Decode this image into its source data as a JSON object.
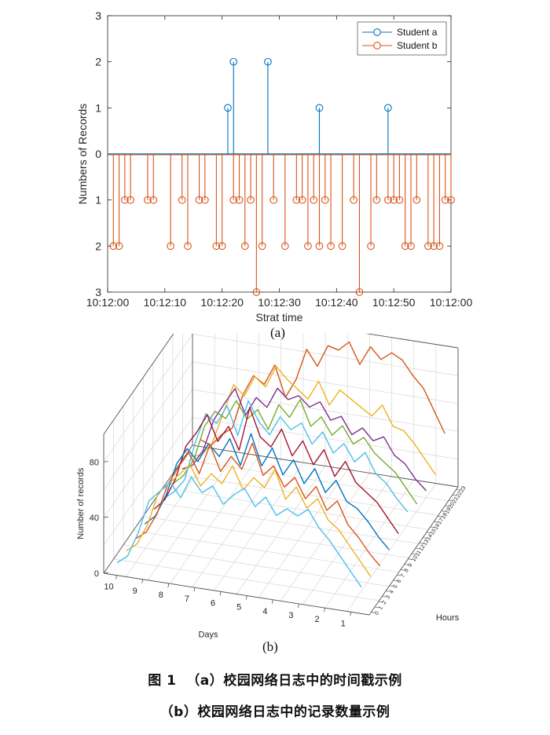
{
  "chart_data": [
    {
      "type": "stem",
      "xlabel": "Strat time",
      "ylabel": "Numbers of Records",
      "xticks": [
        "10:12:00",
        "10:12:10",
        "10:12:20",
        "10:12:30",
        "10:12:40",
        "10:12:50",
        "10:12:00"
      ],
      "yticks": [
        "3",
        "2",
        "1",
        "0",
        "1",
        "2",
        "3"
      ],
      "xlim": [
        0,
        60
      ],
      "ylim": [
        -3,
        3
      ],
      "legend_position": "top-right",
      "colors": {
        "a": "#0072BD",
        "b": "#D95319"
      },
      "series": [
        {
          "name": "Student a",
          "x": [
            21,
            22,
            28,
            37,
            49
          ],
          "values": [
            1,
            2,
            2,
            1,
            1
          ]
        },
        {
          "name": "Student b",
          "x": [
            1,
            2,
            3,
            4,
            7,
            8,
            11,
            13,
            14,
            16,
            17,
            19,
            20,
            22,
            23,
            24,
            25,
            26,
            27,
            29,
            31,
            33,
            34,
            35,
            36,
            37,
            38,
            39,
            41,
            43,
            44,
            46,
            47,
            49,
            50,
            51,
            52,
            53,
            54,
            56,
            57,
            58,
            59,
            60
          ],
          "values": [
            -2,
            -2,
            -1,
            -1,
            -1,
            -1,
            -2,
            -1,
            -2,
            -1,
            -1,
            -2,
            -2,
            -1,
            -1,
            -2,
            -1,
            -3,
            -2,
            -1,
            -2,
            -1,
            -1,
            -2,
            -1,
            -2,
            -1,
            -2,
            -2,
            -1,
            -3,
            -2,
            -1,
            -1,
            -1,
            -1,
            -2,
            -2,
            -1,
            -2,
            -2,
            -2,
            -1,
            -1
          ]
        }
      ]
    },
    {
      "type": "line3d",
      "xlabel": "Hours",
      "ylabel": "Days",
      "zlabel": "Number of records",
      "zticks": [
        "0",
        "40",
        "80"
      ],
      "zlim": [
        0,
        100
      ],
      "day_ticks": [
        "10",
        "9",
        "8",
        "7",
        "6",
        "5",
        "4",
        "3",
        "2",
        "1"
      ],
      "hour_ticks": [
        "0",
        "1",
        "2",
        "3",
        "4",
        "5",
        "6",
        "7",
        "8",
        "9",
        "10",
        "11",
        "12",
        "13",
        "14",
        "15",
        "16",
        "17",
        "18",
        "19",
        "20",
        "21",
        "22",
        "23"
      ],
      "series": [
        {
          "name": "",
          "color": "#D95319",
          "values": [
            8,
            5,
            14,
            20,
            45,
            60,
            55,
            70,
            48,
            62,
            85,
            74,
            90,
            88,
            95,
            80,
            94,
            86,
            92,
            88,
            78,
            70,
            55,
            40
          ]
        },
        {
          "name": "",
          "color": "#EDB120",
          "values": [
            5,
            8,
            18,
            40,
            62,
            55,
            70,
            64,
            80,
            72,
            66,
            60,
            74,
            58,
            70,
            65,
            60,
            55,
            64,
            50,
            48,
            40,
            30,
            20
          ]
        },
        {
          "name": "",
          "color": "#7E2F8E",
          "values": [
            6,
            10,
            22,
            45,
            58,
            70,
            52,
            66,
            60,
            75,
            68,
            72,
            65,
            70,
            58,
            62,
            50,
            56,
            48,
            52,
            40,
            35,
            25,
            18
          ]
        },
        {
          "name": "",
          "color": "#77AC30",
          "values": [
            5,
            12,
            25,
            50,
            62,
            58,
            72,
            60,
            68,
            55,
            74,
            66,
            80,
            62,
            70,
            58,
            66,
            54,
            60,
            50,
            44,
            38,
            28,
            18
          ]
        },
        {
          "name": "",
          "color": "#4DBEEE",
          "values": [
            4,
            10,
            20,
            48,
            70,
            64,
            78,
            58,
            84,
            70,
            62,
            76,
            68,
            74,
            60,
            70,
            56,
            64,
            52,
            60,
            46,
            40,
            30,
            22
          ]
        },
        {
          "name": "",
          "color": "#A2142F",
          "values": [
            6,
            14,
            30,
            55,
            66,
            80,
            62,
            74,
            58,
            90,
            70,
            64,
            78,
            60,
            72,
            56,
            68,
            50,
            62,
            48,
            42,
            36,
            26,
            16
          ]
        },
        {
          "name": "",
          "color": "#0072BD",
          "values": [
            5,
            12,
            28,
            52,
            64,
            56,
            70,
            62,
            76,
            58,
            82,
            60,
            74,
            56,
            68,
            52,
            64,
            48,
            58,
            44,
            40,
            32,
            22,
            14
          ]
        },
        {
          "name": "",
          "color": "#D95319",
          "values": [
            4,
            10,
            24,
            46,
            60,
            72,
            58,
            80,
            62,
            74,
            66,
            86,
            64,
            72,
            58,
            66,
            52,
            62,
            46,
            54,
            38,
            30,
            20,
            12
          ]
        },
        {
          "name": "",
          "color": "#EDB120",
          "values": [
            5,
            11,
            26,
            50,
            58,
            66,
            74,
            60,
            70,
            64,
            78,
            62,
            72,
            66,
            80,
            60,
            70,
            56,
            64,
            50,
            44,
            34,
            24,
            14
          ]
        },
        {
          "name": "",
          "color": "#4DBEEE",
          "values": [
            6,
            12,
            30,
            54,
            62,
            70,
            60,
            76,
            66,
            72,
            60,
            68,
            74,
            62,
            70,
            58,
            64,
            60,
            66,
            54,
            46,
            36,
            26,
            16
          ]
        }
      ]
    }
  ],
  "labels": {
    "sub_a": "(a)",
    "sub_b": "(b)"
  },
  "caption": {
    "line1_prefix": "图 1",
    "line1_text": "（a）校园网络日志中的时间戳示例",
    "line2_text": "（b）校园网络日志中的记录数量示例"
  }
}
